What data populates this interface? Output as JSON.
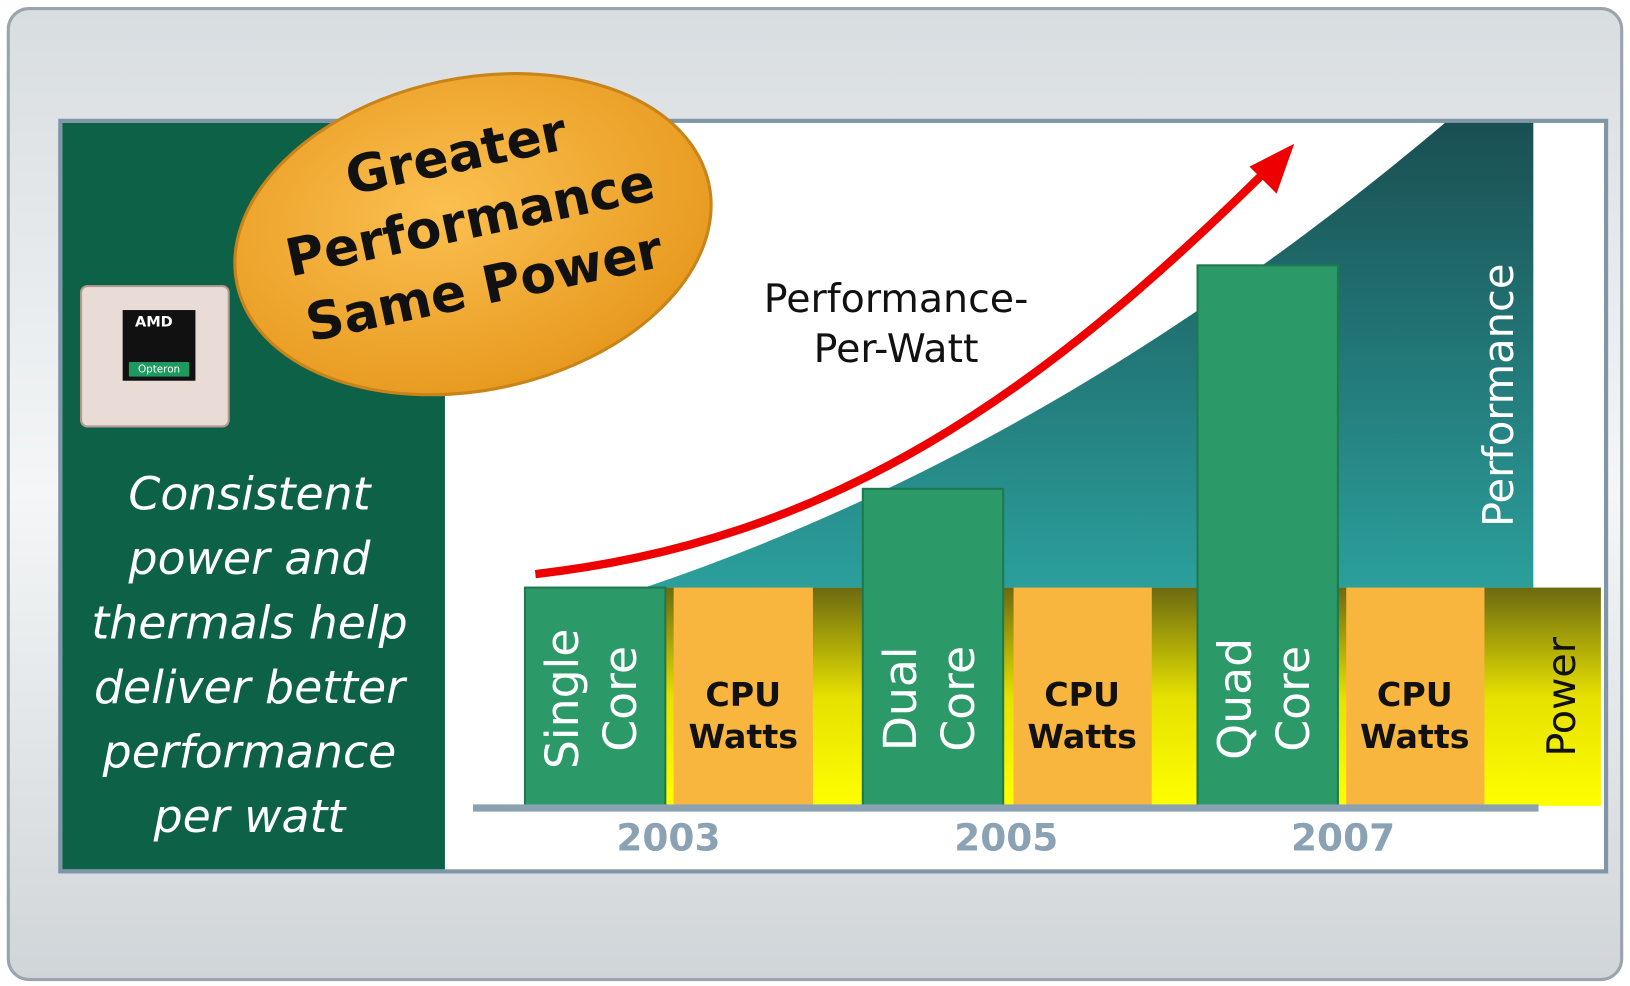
{
  "badge": {
    "lines": [
      "Greater",
      "Performance",
      "Same Power"
    ]
  },
  "logo": {
    "brand": "AMD",
    "sub": "Opteron"
  },
  "sidebar": {
    "lines": [
      "Consistent",
      "power and",
      "thermals help",
      "deliver better",
      "performance",
      "per watt"
    ]
  },
  "trend_label": {
    "lines": [
      "Performance-",
      "Per-Watt"
    ]
  },
  "groups": [
    {
      "year": "2003",
      "core": [
        "Single",
        "Core"
      ],
      "power": [
        "CPU",
        "Watts"
      ]
    },
    {
      "year": "2005",
      "core": [
        "Dual",
        "Core"
      ],
      "power": [
        "CPU",
        "Watts"
      ]
    },
    {
      "year": "2007",
      "core": [
        "Quad",
        "Core"
      ],
      "power": [
        "CPU",
        "Watts"
      ]
    }
  ],
  "axis_labels": {
    "performance": "Performance",
    "power": "Power"
  }
}
